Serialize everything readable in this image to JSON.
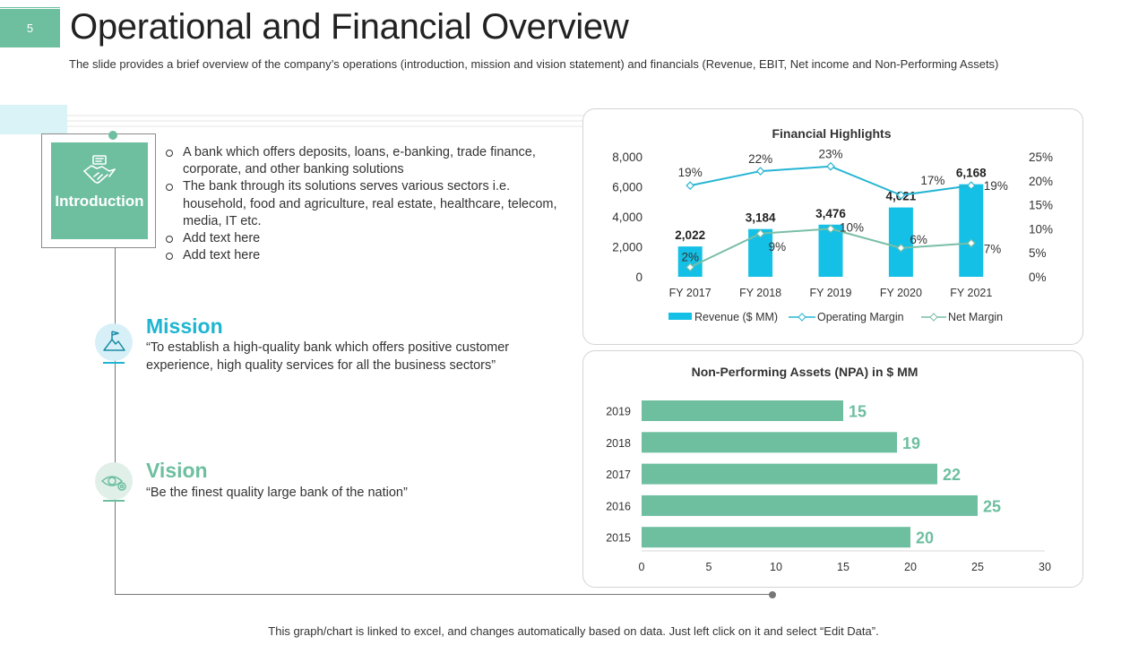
{
  "slide": {
    "number": "5",
    "title": "Operational and Financial Overview",
    "subtitle": "The slide provides a brief overview of the company’s operations (introduction, mission and vision statement) and financials (Revenue, EBIT, Net income and Non-Performing Assets)",
    "footer": "This graph/chart is linked to excel, and changes automatically based on data. Just left click on it and select “Edit Data”."
  },
  "introduction": {
    "label": "Introduction",
    "icon": "handshake-icon",
    "items": [
      "A bank which offers deposits, loans, e-banking, trade finance, corporate, and other banking solutions",
      "The bank through its solutions serves various sectors i.e. household, food and agriculture, real estate, healthcare, telecom, media, IT etc.",
      "Add text here",
      "Add text here"
    ]
  },
  "mission": {
    "heading": "Mission",
    "text": "“To establish a high-quality  bank which offers positive customer experience, high quality services for all the business sectors”",
    "icon": "mountain-flag-icon"
  },
  "vision": {
    "heading": "Vision",
    "text": "“Be the finest quality large bank of the nation”",
    "icon": "eye-gear-icon"
  },
  "colors": {
    "green": "#6dbfa0",
    "cyan": "#1fb5d1",
    "bar_cyan": "#14c0e6",
    "net_line": "#79bea6",
    "op_line": "#26b5d3"
  },
  "chart_data": [
    {
      "type": "bar+line",
      "title": "Financial Highlights",
      "categories": [
        "FY 2017",
        "FY 2018",
        "FY 2019",
        "FY 2020",
        "FY 2021"
      ],
      "series": [
        {
          "name": "Revenue ($ MM)",
          "kind": "bar",
          "axis": "left",
          "values": [
            2022,
            3184,
            3476,
            4621,
            6168
          ],
          "labels": [
            "2,022",
            "3,184",
            "3,476",
            "4,621",
            "6,168"
          ]
        },
        {
          "name": "Operating Margin",
          "kind": "line",
          "axis": "right",
          "values": [
            19,
            22,
            23,
            17,
            19
          ],
          "labels": [
            "19%",
            "22%",
            "23%",
            "17%",
            "19%"
          ]
        },
        {
          "name": "Net Margin",
          "kind": "line",
          "axis": "right",
          "values": [
            2,
            9,
            10,
            6,
            7
          ],
          "labels": [
            "2%",
            "9%",
            "10%",
            "6%",
            "7%"
          ]
        }
      ],
      "y_left": {
        "min": 0,
        "max": 8000,
        "ticks": [
          "0",
          "2,000",
          "4,000",
          "6,000",
          "8,000"
        ]
      },
      "y_right": {
        "min": 0,
        "max": 25,
        "ticks": [
          "0%",
          "5%",
          "10%",
          "15%",
          "20%",
          "25%"
        ]
      },
      "legend": [
        "Revenue ($ MM)",
        "Operating Margin",
        "Net Margin"
      ],
      "legend_position": "bottom",
      "grid": false
    },
    {
      "type": "bar",
      "orientation": "horizontal",
      "title": "Non-Performing Assets (NPA) in $ MM",
      "categories": [
        "2019",
        "2018",
        "2017",
        "2016",
        "2015"
      ],
      "values": [
        15,
        19,
        22,
        25,
        20
      ],
      "x_ticks": [
        "0",
        "5",
        "10",
        "15",
        "20",
        "25",
        "30"
      ],
      "xlim": [
        0,
        30
      ],
      "grid": false
    }
  ]
}
